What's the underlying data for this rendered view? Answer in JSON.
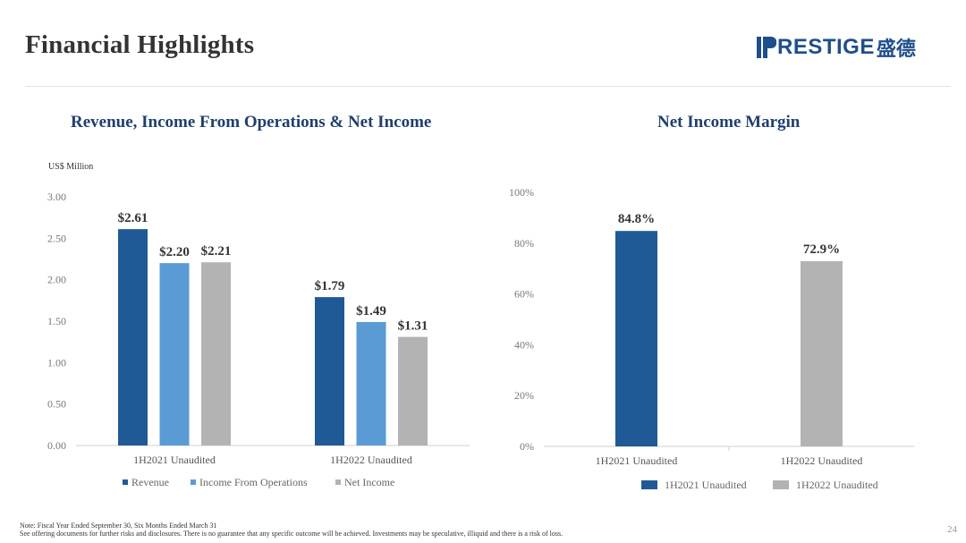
{
  "header": {
    "title": "Financial Highlights",
    "logo_text": "RESTIGE",
    "logo_cn": "盛德",
    "brand_color": "#1f4e8c"
  },
  "chart_left": {
    "title": "Revenue, Income From Operations & Net Income",
    "unit_label": "US$ Million"
  },
  "chart_right": {
    "title": "Net Income Margin"
  },
  "chart_data": [
    {
      "type": "bar",
      "title": "Revenue, Income From Operations & Net Income",
      "ylabel": "US$ Million",
      "categories": [
        "1H2021 Unaudited",
        "1H2022 Unaudited"
      ],
      "ylim": [
        0,
        3
      ],
      "yticks": [
        "0.00",
        "0.50",
        "1.00",
        "1.50",
        "2.00",
        "2.50",
        "3.00"
      ],
      "ytick_values": [
        0,
        0.5,
        1,
        1.5,
        2,
        2.5,
        3
      ],
      "series": [
        {
          "name": "Revenue",
          "values": [
            2.61,
            1.79
          ],
          "labels": [
            "$2.61",
            "$1.79"
          ],
          "color": "#1f5a96"
        },
        {
          "name": "Income From Operations",
          "values": [
            2.2,
            1.49
          ],
          "labels": [
            "$2.20",
            "$1.49"
          ],
          "color": "#5b9bd5"
        },
        {
          "name": "Net Income",
          "values": [
            2.21,
            1.31
          ],
          "labels": [
            "$2.21",
            "$1.31"
          ],
          "color": "#b3b3b3"
        }
      ],
      "legend": "bottom"
    },
    {
      "type": "bar",
      "title": "Net Income Margin",
      "categories": [
        "1H2021 Unaudited",
        "1H2022 Unaudited"
      ],
      "ylim": [
        0,
        100
      ],
      "yticks": [
        "0%",
        "20%",
        "40%",
        "60%",
        "80%",
        "100%"
      ],
      "ytick_values": [
        0,
        20,
        40,
        60,
        80,
        100
      ],
      "values": [
        84.8,
        72.9
      ],
      "labels": [
        "84.8%",
        "72.9%"
      ],
      "colors": [
        "#1f5a96",
        "#b3b3b3"
      ],
      "legend_entries": [
        "1H2021 Unaudited",
        "1H2022 Unaudited"
      ],
      "legend": "bottom"
    }
  ],
  "footer": {
    "note1": "Note: Fiscal Year Ended September 30, Six Months Ended March 31",
    "note2": "See offering documents for further risks and disclosures. There is no guarantee that any specific outcome will be achieved. Investments may be speculative, illiquid and there is a risk of loss.",
    "page_number": "24"
  }
}
